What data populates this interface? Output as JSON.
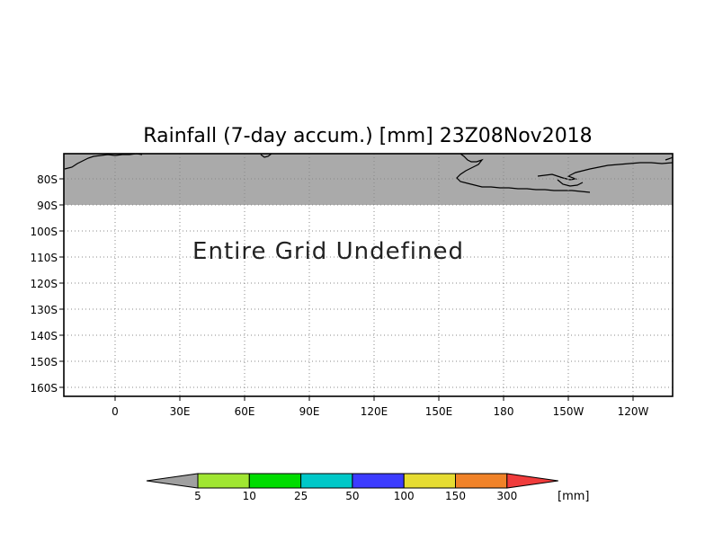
{
  "title": "Rainfall (7-day accum.) [mm] 23Z08Nov2018",
  "message": "Entire Grid Undefined",
  "map": {
    "lat_ticks": [
      "80S",
      "90S",
      "100S",
      "110S",
      "120S",
      "130S",
      "140S",
      "150S",
      "160S"
    ],
    "lon_ticks": [
      "0",
      "30E",
      "60E",
      "90E",
      "120E",
      "150E",
      "180",
      "150W",
      "120W"
    ],
    "land_color": "#aaaaaa",
    "gridline_style": "dotted"
  },
  "legend": {
    "unit": "[mm]",
    "labels": [
      "5",
      "10",
      "25",
      "50",
      "100",
      "150",
      "300"
    ],
    "colors": [
      "#a0a0a0",
      "#a0e632",
      "#00dc00",
      "#00c8c8",
      "#3c3cff",
      "#e6dc32",
      "#f08228",
      "#f03c3c"
    ]
  }
}
